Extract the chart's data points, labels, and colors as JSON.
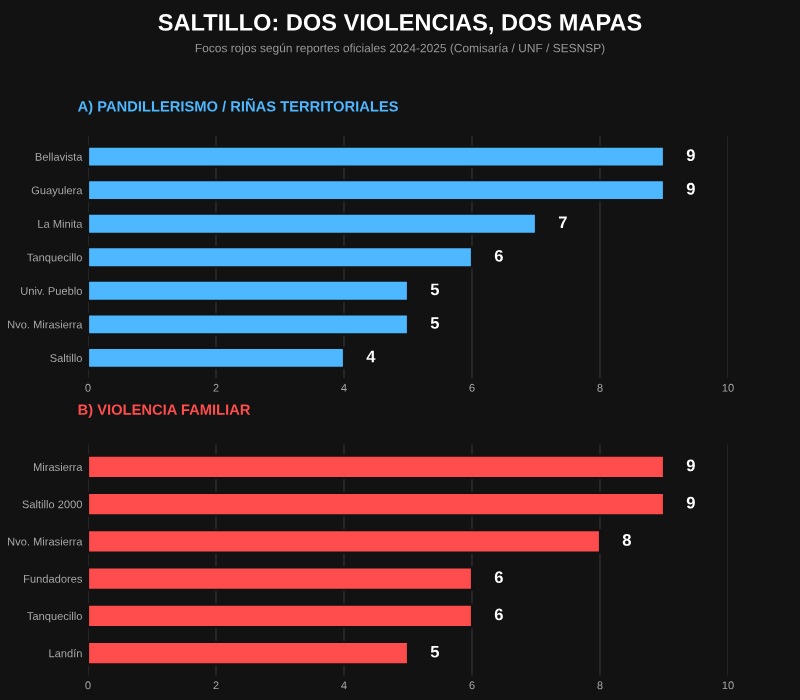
{
  "chart_data": [
    {
      "type": "bar",
      "orientation": "horizontal",
      "title": "SALTILLO: DOS VIOLENCIAS, DOS MAPAS",
      "subtitle": "Focos rojos según reportes oficiales 2024-2025 (Comisaría / UNF / SESNSP)",
      "annotations": [
        "A) PANDILLERISMO / RIÑAS TERRITORIALES"
      ],
      "categories": [
        "Bellavista",
        "Guayulera",
        "La Minita",
        "Tanquecillo",
        "Univ. Pueblo",
        "Nvo. Mirasierra",
        "Saltillo"
      ],
      "values": [
        9,
        9,
        7,
        6,
        5,
        5,
        4
      ],
      "color": "#4db8ff",
      "xlim": [
        0,
        10
      ],
      "xticks": [
        0,
        2,
        4,
        6,
        8,
        10
      ],
      "grid": "x",
      "data_labels": true
    },
    {
      "type": "bar",
      "orientation": "horizontal",
      "title": "B) VIOLENCIA FAMILIAR",
      "categories": [
        "Mirasierra",
        "Saltillo 2000",
        "Nvo. Mirasierra",
        "Fundadores",
        "Tanquecillo",
        "Landín"
      ],
      "values": [
        9,
        9,
        8,
        6,
        6,
        5
      ],
      "color": "#ff4d4d",
      "xlim": [
        0,
        10
      ],
      "xticks": [
        0,
        2,
        4,
        6,
        8,
        10
      ],
      "grid": "x",
      "data_labels": true
    }
  ]
}
